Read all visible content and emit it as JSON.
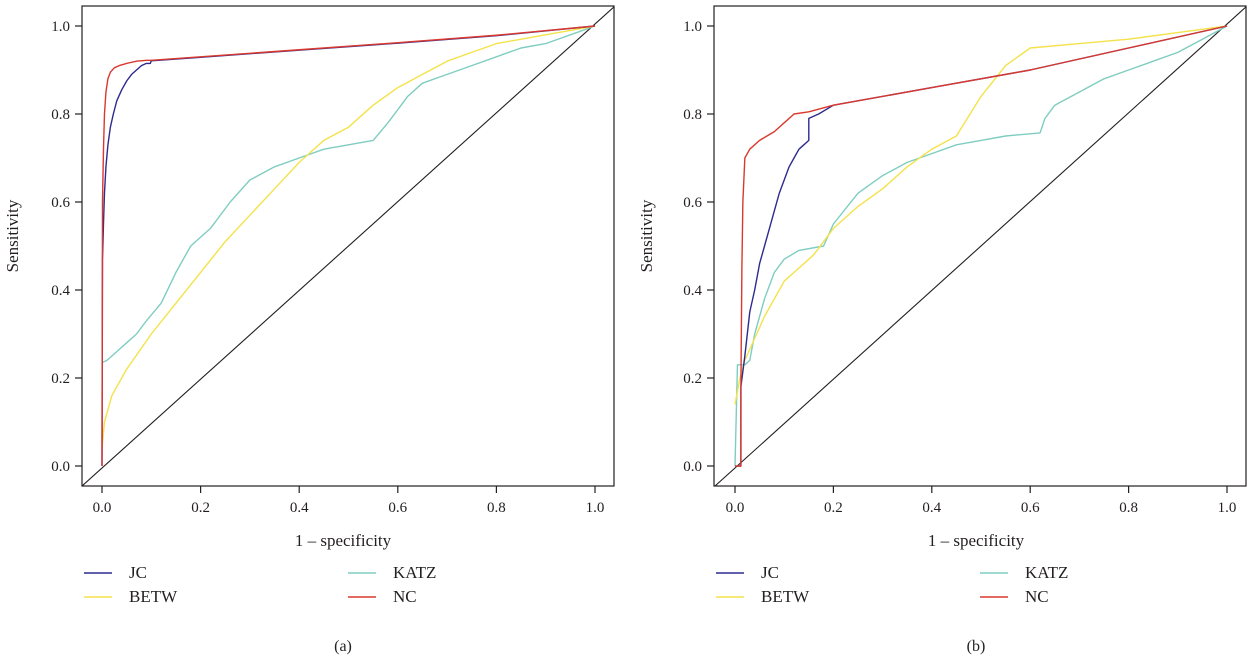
{
  "chart_data": [
    {
      "type": "line",
      "panel_label": "(a)",
      "xlabel": "1 – specificity",
      "ylabel": "Sensitivity",
      "xlim": [
        0,
        1
      ],
      "ylim": [
        0,
        1
      ],
      "xticks": [
        "0.0",
        "0.2",
        "0.4",
        "0.6",
        "0.8",
        "1.0"
      ],
      "yticks": [
        "0.0",
        "0.2",
        "0.4",
        "0.6",
        "0.8",
        "1.0"
      ],
      "diagonal_reference": true,
      "legend_position": "bottom",
      "legend": [
        "JC",
        "BETW",
        "KATZ",
        "NC"
      ],
      "series": [
        {
          "name": "JC",
          "color": "#2e2a8f",
          "x": [
            0,
            0.001,
            0.003,
            0.005,
            0.008,
            0.012,
            0.017,
            0.023,
            0.03,
            0.04,
            0.05,
            0.06,
            0.07,
            0.08,
            0.09,
            0.098,
            0.1,
            0.2,
            0.4,
            0.6,
            0.8,
            1.0
          ],
          "y": [
            0,
            0.47,
            0.55,
            0.62,
            0.68,
            0.73,
            0.77,
            0.8,
            0.83,
            0.855,
            0.875,
            0.89,
            0.9,
            0.91,
            0.915,
            0.915,
            0.921,
            0.929,
            0.945,
            0.961,
            0.978,
            1.0
          ]
        },
        {
          "name": "BETW",
          "color": "#f4e24a",
          "x": [
            0,
            0.005,
            0.02,
            0.05,
            0.1,
            0.15,
            0.2,
            0.25,
            0.3,
            0.35,
            0.4,
            0.45,
            0.5,
            0.55,
            0.6,
            0.65,
            0.7,
            0.75,
            0.8,
            0.85,
            0.9,
            0.95,
            1.0
          ],
          "y": [
            0.04,
            0.1,
            0.16,
            0.22,
            0.3,
            0.37,
            0.44,
            0.51,
            0.57,
            0.63,
            0.69,
            0.74,
            0.77,
            0.82,
            0.86,
            0.89,
            0.92,
            0.94,
            0.96,
            0.97,
            0.98,
            0.99,
            1.0
          ]
        },
        {
          "name": "KATZ",
          "color": "#7fcdc1",
          "x": [
            0,
            0.01,
            0.03,
            0.05,
            0.07,
            0.09,
            0.12,
            0.15,
            0.18,
            0.22,
            0.26,
            0.3,
            0.35,
            0.4,
            0.45,
            0.5,
            0.55,
            0.58,
            0.62,
            0.65,
            0.7,
            0.75,
            0.8,
            0.85,
            0.9,
            0.95,
            1.0
          ],
          "y": [
            0.235,
            0.24,
            0.26,
            0.28,
            0.3,
            0.33,
            0.37,
            0.44,
            0.5,
            0.54,
            0.6,
            0.65,
            0.68,
            0.7,
            0.72,
            0.73,
            0.74,
            0.78,
            0.84,
            0.87,
            0.89,
            0.91,
            0.93,
            0.95,
            0.96,
            0.98,
            1.0
          ]
        },
        {
          "name": "NC",
          "color": "#d9382e",
          "x": [
            0,
            0.001,
            0.003,
            0.005,
            0.008,
            0.012,
            0.017,
            0.025,
            0.035,
            0.05,
            0.07,
            0.09,
            0.1,
            0.2,
            0.4,
            0.6,
            0.8,
            1.0
          ],
          "y": [
            0,
            0.6,
            0.72,
            0.8,
            0.85,
            0.88,
            0.895,
            0.905,
            0.91,
            0.915,
            0.92,
            0.922,
            0.922,
            0.93,
            0.946,
            0.962,
            0.979,
            1.0
          ]
        }
      ]
    },
    {
      "type": "line",
      "panel_label": "(b)",
      "xlabel": "1 – specificity",
      "ylabel": "Sensitivity",
      "xlim": [
        0,
        1
      ],
      "ylim": [
        0,
        1
      ],
      "xticks": [
        "0.0",
        "0.2",
        "0.4",
        "0.6",
        "0.8",
        "1.0"
      ],
      "yticks": [
        "0.0",
        "0.2",
        "0.4",
        "0.6",
        "0.8",
        "1.0"
      ],
      "diagonal_reference": true,
      "legend_position": "bottom",
      "legend": [
        "JC",
        "BETW",
        "KATZ",
        "NC"
      ],
      "series": [
        {
          "name": "JC",
          "color": "#2e2a8f",
          "x": [
            0.005,
            0.012,
            0.012,
            0.02,
            0.025,
            0.03,
            0.04,
            0.05,
            0.06,
            0.07,
            0.08,
            0.09,
            0.1,
            0.11,
            0.12,
            0.13,
            0.14,
            0.15,
            0.15,
            0.17,
            0.2,
            0.4,
            0.6,
            0.8,
            1.0
          ],
          "y": [
            0,
            0,
            0.18,
            0.25,
            0.3,
            0.35,
            0.4,
            0.46,
            0.5,
            0.54,
            0.58,
            0.62,
            0.65,
            0.68,
            0.7,
            0.72,
            0.73,
            0.74,
            0.79,
            0.8,
            0.82,
            0.86,
            0.9,
            0.95,
            1.0
          ]
        },
        {
          "name": "BETW",
          "color": "#f4e24a",
          "x": [
            0,
            0.01,
            0.02,
            0.04,
            0.06,
            0.08,
            0.1,
            0.13,
            0.16,
            0.2,
            0.25,
            0.3,
            0.35,
            0.4,
            0.45,
            0.5,
            0.55,
            0.6,
            0.7,
            0.8,
            0.9,
            1.0
          ],
          "y": [
            0.14,
            0.2,
            0.24,
            0.29,
            0.34,
            0.38,
            0.42,
            0.45,
            0.48,
            0.54,
            0.59,
            0.63,
            0.68,
            0.72,
            0.75,
            0.84,
            0.91,
            0.95,
            0.96,
            0.97,
            0.985,
            1.0
          ]
        },
        {
          "name": "KATZ",
          "color": "#7fcdc1",
          "x": [
            0,
            0.005,
            0.02,
            0.03,
            0.04,
            0.06,
            0.08,
            0.1,
            0.13,
            0.18,
            0.2,
            0.25,
            0.3,
            0.35,
            0.4,
            0.45,
            0.5,
            0.55,
            0.6,
            0.62,
            0.63,
            0.65,
            0.7,
            0.75,
            0.8,
            0.85,
            0.9,
            0.95,
            1.0
          ],
          "y": [
            0,
            0.23,
            0.23,
            0.24,
            0.3,
            0.38,
            0.44,
            0.47,
            0.49,
            0.5,
            0.55,
            0.62,
            0.66,
            0.69,
            0.71,
            0.73,
            0.74,
            0.75,
            0.755,
            0.757,
            0.79,
            0.82,
            0.85,
            0.88,
            0.9,
            0.92,
            0.94,
            0.97,
            1.0
          ]
        },
        {
          "name": "NC",
          "color": "#d9382e",
          "x": [
            0,
            0.012,
            0.012,
            0.014,
            0.016,
            0.02,
            0.03,
            0.05,
            0.08,
            0.1,
            0.12,
            0.15,
            0.2,
            0.4,
            0.6,
            0.8,
            1.0
          ],
          "y": [
            0,
            0,
            0.18,
            0.45,
            0.6,
            0.7,
            0.72,
            0.74,
            0.76,
            0.78,
            0.8,
            0.805,
            0.82,
            0.86,
            0.9,
            0.95,
            1.0
          ]
        }
      ]
    }
  ]
}
